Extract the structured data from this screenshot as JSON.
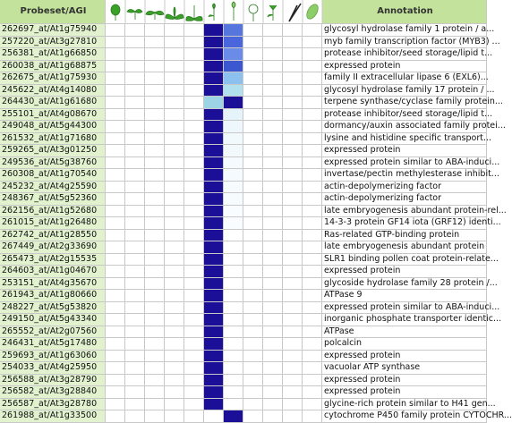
{
  "header": {
    "probeset": "Probeset/AGI",
    "annotation": "Annotation"
  },
  "rows": [
    {
      "probeset": "262697_at/At1g75940",
      "annotation": "glycosyl hydrolase family 1 protein / a...",
      "cells": [
        "#fff",
        "#fff",
        "#fff",
        "#fff",
        "#fff",
        "#1a0f96",
        "#5577dd",
        "#fff",
        "#fff",
        "#fff",
        "#fff"
      ]
    },
    {
      "probeset": "257220_at/At3g27810",
      "annotation": "myb family transcription factor (MYB3) ...",
      "cells": [
        "#fff",
        "#fff",
        "#fff",
        "#fff",
        "#fff",
        "#1a0f96",
        "#4a66dc",
        "#fff",
        "#fff",
        "#fff",
        "#fff"
      ]
    },
    {
      "probeset": "256381_at/At1g66850",
      "annotation": "protease inhibitor/seed storage/lipid t...",
      "cells": [
        "#fff",
        "#fff",
        "#fff",
        "#fff",
        "#fff",
        "#1a0f96",
        "#6a8ce8",
        "#fff",
        "#fff",
        "#fff",
        "#fff"
      ]
    },
    {
      "probeset": "260038_at/At1g68875",
      "annotation": "expressed protein",
      "cells": [
        "#fff",
        "#fff",
        "#fff",
        "#fff",
        "#fff",
        "#1a0f96",
        "#3c58d0",
        "#fff",
        "#fff",
        "#fff",
        "#fff"
      ]
    },
    {
      "probeset": "262675_at/At1g75930",
      "annotation": "family II extracellular lipase 6 (EXL6)...",
      "cells": [
        "#fff",
        "#fff",
        "#fff",
        "#fff",
        "#fff",
        "#1a0f96",
        "#8cc0ee",
        "#fff",
        "#fff",
        "#fff",
        "#fff"
      ]
    },
    {
      "probeset": "245622_at/At4g14080",
      "annotation": "glycosyl hydrolase family 17 protein / ...",
      "cells": [
        "#fff",
        "#fff",
        "#fff",
        "#fff",
        "#fff",
        "#1a0f96",
        "#b0e0ee",
        "#fff",
        "#fff",
        "#fff",
        "#fff"
      ]
    },
    {
      "probeset": "264430_at/At1g61680",
      "annotation": "terpene synthase/cyclase family protein...",
      "cells": [
        "#fff",
        "#fff",
        "#fff",
        "#fff",
        "#fff",
        "#9cd4e6",
        "#1a0f96",
        "#fff",
        "#fff",
        "#fff",
        "#fff"
      ]
    },
    {
      "probeset": "255101_at/At4g08670",
      "annotation": "protease inhibitor/seed storage/lipid t...",
      "cells": [
        "#fff",
        "#fff",
        "#fff",
        "#fff",
        "#fff",
        "#1a0f96",
        "#e4f4fa",
        "#fff",
        "#fff",
        "#fff",
        "#fff"
      ]
    },
    {
      "probeset": "249048_at/At5g44300",
      "annotation": "dormancy/auxin associated family protei...",
      "cells": [
        "#fff",
        "#fff",
        "#fff",
        "#fff",
        "#fff",
        "#1a0f96",
        "#eef8fc",
        "#fff",
        "#fff",
        "#fff",
        "#fff"
      ]
    },
    {
      "probeset": "261532_at/At1g71680",
      "annotation": "lysine and histidine specific transport...",
      "cells": [
        "#fff",
        "#fff",
        "#fff",
        "#fff",
        "#fff",
        "#1a0f96",
        "#f2f9fc",
        "#fff",
        "#fff",
        "#fff",
        "#fff"
      ]
    },
    {
      "probeset": "259265_at/At3g01250",
      "annotation": "expressed protein",
      "cells": [
        "#fff",
        "#fff",
        "#fff",
        "#fff",
        "#fff",
        "#1a0f96",
        "#f2f9fc",
        "#fff",
        "#fff",
        "#fff",
        "#fff"
      ]
    },
    {
      "probeset": "249536_at/At5g38760",
      "annotation": "expressed protein similar to ABA-induci...",
      "cells": [
        "#fff",
        "#fff",
        "#fff",
        "#fff",
        "#fff",
        "#1a0f96",
        "#f4fafd",
        "#fff",
        "#fff",
        "#fff",
        "#fff"
      ]
    },
    {
      "probeset": "260308_at/At1g70540",
      "annotation": "invertase/pectin methylesterase inhibit...",
      "cells": [
        "#fff",
        "#fff",
        "#fff",
        "#fff",
        "#fff",
        "#1a0f96",
        "#f4fafd",
        "#fff",
        "#fff",
        "#fff",
        "#fff"
      ]
    },
    {
      "probeset": "245232_at/At4g25590",
      "annotation": "actin-depolymerizing factor",
      "cells": [
        "#fff",
        "#fff",
        "#fff",
        "#fff",
        "#fff",
        "#1a0f96",
        "#f6fbfd",
        "#fff",
        "#fff",
        "#fff",
        "#fff"
      ]
    },
    {
      "probeset": "248367_at/At5g52360",
      "annotation": "actin-depolymerizing factor",
      "cells": [
        "#fff",
        "#fff",
        "#fff",
        "#fff",
        "#fff",
        "#1a0f96",
        "#f6fbfd",
        "#fff",
        "#fff",
        "#fff",
        "#fff"
      ]
    },
    {
      "probeset": "262156_at/At1g52680",
      "annotation": "late embryogenesis abundant protein-rel...",
      "cells": [
        "#fff",
        "#fff",
        "#fff",
        "#fff",
        "#fff",
        "#1a0f96",
        "#f8fcfe",
        "#fff",
        "#fff",
        "#fff",
        "#fff"
      ]
    },
    {
      "probeset": "261015_at/At1g26480",
      "annotation": "14-3-3 protein GF14 iota (GRF12) identi...",
      "cells": [
        "#fff",
        "#fff",
        "#fff",
        "#fff",
        "#fff",
        "#1a0f96",
        "#f8fcfe",
        "#fff",
        "#fff",
        "#fff",
        "#fff"
      ]
    },
    {
      "probeset": "262742_at/At1g28550",
      "annotation": "Ras-related GTP-binding protein",
      "cells": [
        "#fff",
        "#fff",
        "#fff",
        "#fff",
        "#fff",
        "#1a0f96",
        "#fff",
        "#fff",
        "#fff",
        "#fff",
        "#fff"
      ]
    },
    {
      "probeset": "267449_at/At2g33690",
      "annotation": "late embryogenesis abundant protein",
      "cells": [
        "#fff",
        "#fff",
        "#fff",
        "#fff",
        "#fff",
        "#1a0f96",
        "#fff",
        "#fff",
        "#fff",
        "#fff",
        "#fff"
      ]
    },
    {
      "probeset": "265473_at/At2g15535",
      "annotation": "SLR1 binding pollen coat protein-relate...",
      "cells": [
        "#fff",
        "#fff",
        "#fff",
        "#fff",
        "#fff",
        "#1a0f96",
        "#fff",
        "#fff",
        "#fff",
        "#fff",
        "#fff"
      ]
    },
    {
      "probeset": "264603_at/At1g04670",
      "annotation": "expressed protein",
      "cells": [
        "#fff",
        "#fff",
        "#fff",
        "#fff",
        "#fff",
        "#1a0f96",
        "#fff",
        "#fff",
        "#fff",
        "#fff",
        "#fff"
      ]
    },
    {
      "probeset": "253151_at/At4g35670",
      "annotation": "glycoside hydrolase family 28 protein /...",
      "cells": [
        "#fff",
        "#fff",
        "#fff",
        "#fff",
        "#fff",
        "#1a0f96",
        "#fff",
        "#fff",
        "#fff",
        "#fff",
        "#fff"
      ]
    },
    {
      "probeset": "261943_at/At1g80660",
      "annotation": "ATPase 9",
      "cells": [
        "#fff",
        "#fff",
        "#fff",
        "#fff",
        "#fff",
        "#1a0f96",
        "#fff",
        "#fff",
        "#fff",
        "#fff",
        "#fff"
      ]
    },
    {
      "probeset": "248227_at/At5g53820",
      "annotation": "expressed protein similar to ABA-induci...",
      "cells": [
        "#fff",
        "#fff",
        "#fff",
        "#fff",
        "#fff",
        "#1a0f96",
        "#fff",
        "#fff",
        "#fff",
        "#fff",
        "#fff"
      ]
    },
    {
      "probeset": "249150_at/At5g43340",
      "annotation": "inorganic phosphate transporter identic...",
      "cells": [
        "#fff",
        "#fff",
        "#fff",
        "#fff",
        "#fff",
        "#1a0f96",
        "#fff",
        "#fff",
        "#fff",
        "#fff",
        "#fff"
      ]
    },
    {
      "probeset": "265552_at/At2g07560",
      "annotation": "ATPase",
      "cells": [
        "#fff",
        "#fff",
        "#fff",
        "#fff",
        "#fff",
        "#1a0f96",
        "#fff",
        "#fff",
        "#fff",
        "#fff",
        "#fff"
      ]
    },
    {
      "probeset": "246431_at/At5g17480",
      "annotation": "polcalcin",
      "cells": [
        "#fff",
        "#fff",
        "#fff",
        "#fff",
        "#fff",
        "#1a0f96",
        "#fff",
        "#fff",
        "#fff",
        "#fff",
        "#fff"
      ]
    },
    {
      "probeset": "259693_at/At1g63060",
      "annotation": "expressed protein",
      "cells": [
        "#fff",
        "#fff",
        "#fff",
        "#fff",
        "#fff",
        "#1a0f96",
        "#fff",
        "#fff",
        "#fff",
        "#fff",
        "#fff"
      ]
    },
    {
      "probeset": "254033_at/At4g25950",
      "annotation": "vacuolar ATP synthase",
      "cells": [
        "#fff",
        "#fff",
        "#fff",
        "#fff",
        "#fff",
        "#1a0f96",
        "#fff",
        "#fff",
        "#fff",
        "#fff",
        "#fff"
      ]
    },
    {
      "probeset": "256588_at/At3g28790",
      "annotation": "expressed protein",
      "cells": [
        "#fff",
        "#fff",
        "#fff",
        "#fff",
        "#fff",
        "#1a0f96",
        "#fff",
        "#fff",
        "#fff",
        "#fff",
        "#fff"
      ]
    },
    {
      "probeset": "256582_at/At3g28840",
      "annotation": "expressed protein",
      "cells": [
        "#fff",
        "#fff",
        "#fff",
        "#fff",
        "#fff",
        "#1a0f96",
        "#fff",
        "#fff",
        "#fff",
        "#fff",
        "#fff"
      ]
    },
    {
      "probeset": "256587_at/At3g28780",
      "annotation": "glycine-rich protein similar to H41 gen...",
      "cells": [
        "#fff",
        "#fff",
        "#fff",
        "#fff",
        "#fff",
        "#1a0f96",
        "#fff",
        "#fff",
        "#fff",
        "#fff",
        "#fff"
      ]
    },
    {
      "probeset": "261988_at/At1g33500",
      "annotation": "cytochrome P450 family protein CYTOCHR...",
      "cells": [
        "#fff",
        "#fff",
        "#fff",
        "#fff",
        "#fff",
        "#fff",
        "#1a0f96",
        "#fff",
        "#fff",
        "#fff",
        "#fff"
      ]
    }
  ]
}
